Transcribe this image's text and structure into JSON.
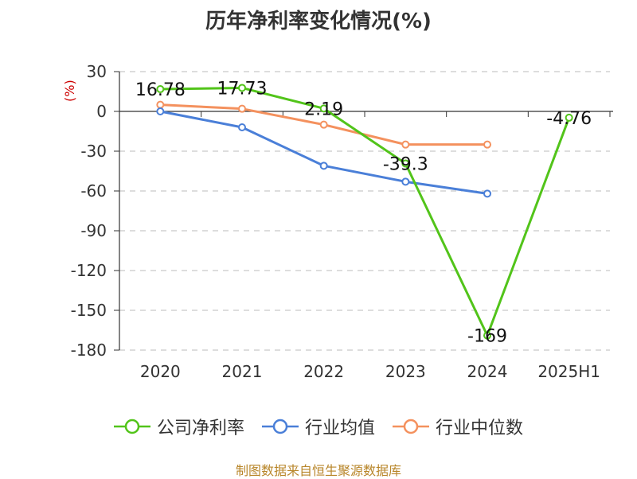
{
  "chart_data": {
    "type": "line",
    "title": "历年净利率变化情况(%)",
    "ylabel": "(%)",
    "categories": [
      "2020",
      "2021",
      "2022",
      "2023",
      "2024",
      "2025H1"
    ],
    "ylim": [
      -180,
      30
    ],
    "yticks": [
      30,
      0,
      -30,
      -60,
      -90,
      -120,
      -150,
      -180
    ],
    "grid": true,
    "legend_position": "bottom",
    "series": [
      {
        "name": "公司净利率",
        "color": "#52c41a",
        "values": [
          16.78,
          17.73,
          2.19,
          -39.3,
          -169,
          -4.76
        ],
        "labels": [
          "16.78",
          "17.73",
          "2.19",
          "-39.3",
          "-169",
          "-4.76"
        ]
      },
      {
        "name": "行业均值",
        "color": "#4a7fd8",
        "values": [
          0,
          -12,
          -41,
          -53,
          -62,
          null
        ]
      },
      {
        "name": "行业中位数",
        "color": "#f4915e",
        "values": [
          5,
          2,
          -10,
          -25,
          -25,
          null
        ]
      }
    ]
  },
  "source": "制图数据来自恒生聚源数据库"
}
